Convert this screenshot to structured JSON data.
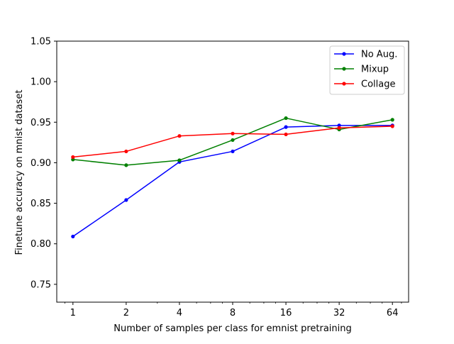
{
  "chart_data": {
    "type": "line",
    "title": "",
    "xlabel": "Number of samples per class for emnist pretraining",
    "ylabel": "Finetune accuracy on mnist dataset",
    "x_scale": "log2",
    "x": [
      1,
      2,
      4,
      8,
      16,
      32,
      64
    ],
    "x_tick_labels": [
      "1",
      "2",
      "4",
      "8",
      "16",
      "32",
      "64"
    ],
    "ylim": [
      0.728,
      1.05
    ],
    "y_ticks": [
      0.75,
      0.8,
      0.85,
      0.9,
      0.95,
      1.0,
      1.05
    ],
    "y_tick_labels": [
      "0.75",
      "0.80",
      "0.85",
      "0.90",
      "0.95",
      "1.00",
      "1.05"
    ],
    "grid": false,
    "legend_position": "top-right",
    "series": [
      {
        "name": "No Aug.",
        "color": "#0000ff",
        "values": [
          0.809,
          0.854,
          0.901,
          0.914,
          0.944,
          0.946,
          0.946
        ]
      },
      {
        "name": "Mixup",
        "color": "#008000",
        "values": [
          0.904,
          0.897,
          0.903,
          0.928,
          0.955,
          0.941,
          0.953
        ]
      },
      {
        "name": "Collage",
        "color": "#ff0000",
        "values": [
          0.907,
          0.914,
          0.933,
          0.936,
          0.935,
          0.943,
          0.945
        ]
      }
    ]
  }
}
